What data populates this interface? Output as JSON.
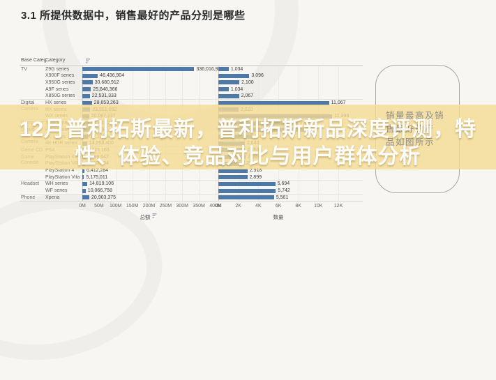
{
  "page": {
    "title": "3.1 所提供数据中，销售最好的产品分别是哪些"
  },
  "overlay": {
    "line1": "12月普利拓斯最新，普利拓斯新品深度评测，特",
    "line2": "性、体验、竞品对比与用户群体分析",
    "band_color": "#f4da94"
  },
  "callout": {
    "lines": [
      "销量最高及销",
      "售最好的产",
      "品如图所示"
    ]
  },
  "chart_data": {
    "type": "bar",
    "orientation": "horizontal",
    "title": "3.1 所提供数据中，销售最好的产品分别是哪些",
    "columns": [
      "Base Categ..",
      "Category"
    ],
    "bar_color": "#4e79a7",
    "grid": true,
    "amount_axis": {
      "label": "总额",
      "ticks": [
        "0M",
        "50M",
        "100M",
        "150M",
        "200M",
        "250M",
        "300M",
        "350M",
        "400M"
      ],
      "max": 400000000
    },
    "quantity_axis": {
      "label": "数量",
      "ticks": [
        "0K",
        "2K",
        "4K",
        "6K",
        "8K",
        "10K",
        "12K"
      ],
      "max": 13000
    },
    "rows": [
      {
        "base_category": "TV",
        "category": "Z9G series",
        "amount": 336016966,
        "amount_label": "336,016,966",
        "quantity": 1034,
        "quantity_label": "1,034"
      },
      {
        "base_category": "TV",
        "category": "X900F series",
        "amount": 46436904,
        "amount_label": "46,436,904",
        "quantity": 3096,
        "quantity_label": "3,096"
      },
      {
        "base_category": "TV",
        "category": "X950G series",
        "amount": 30680912,
        "amount_label": "30,680,912",
        "quantity": 2100,
        "quantity_label": "2,100"
      },
      {
        "base_category": "TV",
        "category": "A9F series",
        "amount": 25848366,
        "amount_label": "25,848,366",
        "quantity": 1034,
        "quantity_label": "1,034"
      },
      {
        "base_category": "TV",
        "category": "X850G series",
        "amount": 22531333,
        "amount_label": "22,531,333",
        "quantity": 2067,
        "quantity_label": "2,067"
      },
      {
        "base_category": "Digital Camera",
        "category": "HX series",
        "amount": 28653263,
        "amount_label": "28,653,263",
        "quantity": 11067,
        "quantity_label": "11,067"
      },
      {
        "base_category": "Digital Camera",
        "category": "RX series",
        "amount": 23551092,
        "amount_label": "23,551,092",
        "quantity": 2020,
        "quantity_label": "2,020"
      },
      {
        "base_category": "Digital Camera",
        "category": "WX series",
        "amount": 20067237,
        "amount_label": "20,067,237",
        "quantity": 11398,
        "quantity_label": "11,398"
      },
      {
        "base_category": "Components",
        "category": "SRS series",
        "amount": 21067237,
        "amount_label": "21,067,237",
        "quantity": 7950,
        "quantity_label": "7,950"
      },
      {
        "base_category": "Digital Video Camera",
        "category": "HD series",
        "amount": 22698460,
        "amount_label": "22,698,460",
        "quantity": 8572,
        "quantity_label": "8,572"
      },
      {
        "base_category": "Digital Video Camera",
        "category": "4K series",
        "amount": 17164660,
        "amount_label": "17,164,660",
        "quantity": 3417,
        "quantity_label": "3,417"
      },
      {
        "base_category": "Digital Video Camera",
        "category": "4K HDR series",
        "amount": 14258400,
        "amount_label": "14,258,400",
        "quantity": 2640,
        "quantity_label": "2,640"
      },
      {
        "base_category": "Game CD",
        "category": "PS4",
        "amount": 9421103,
        "amount_label": "9,421,103",
        "quantity": 2653,
        "quantity_label": "2,653"
      },
      {
        "base_category": "Game Console",
        "category": "PlayStation 4 Pro",
        "amount": 7999647,
        "amount_label": "7,999,647",
        "quantity": 2689,
        "quantity_label": "2,689"
      },
      {
        "base_category": "Game Console",
        "category": "PlayStation VR",
        "amount": 7853984,
        "amount_label": "7,853,984",
        "quantity": 2205,
        "quantity_label": "2,205"
      },
      {
        "base_category": "Game Console",
        "category": "PlayStation 4",
        "amount": 6412284,
        "amount_label": "6,412,284",
        "quantity": 2918,
        "quantity_label": "2,918"
      },
      {
        "base_category": "Game Console",
        "category": "PlayStation Vita",
        "amount": 5175011,
        "amount_label": "5,175,011",
        "quantity": 2899,
        "quantity_label": "2,899"
      },
      {
        "base_category": "Headset",
        "category": "WH series",
        "amount": 14819106,
        "amount_label": "14,819,106",
        "quantity": 5694,
        "quantity_label": "5,694"
      },
      {
        "base_category": "Headset",
        "category": "WF series",
        "amount": 10066758,
        "amount_label": "10,066,758",
        "quantity": 5742,
        "quantity_label": "5,742"
      },
      {
        "base_category": "Phone",
        "category": "Xperia",
        "amount": 20903375,
        "amount_label": "20,903,375",
        "quantity": 5561,
        "quantity_label": "5,561"
      }
    ]
  }
}
